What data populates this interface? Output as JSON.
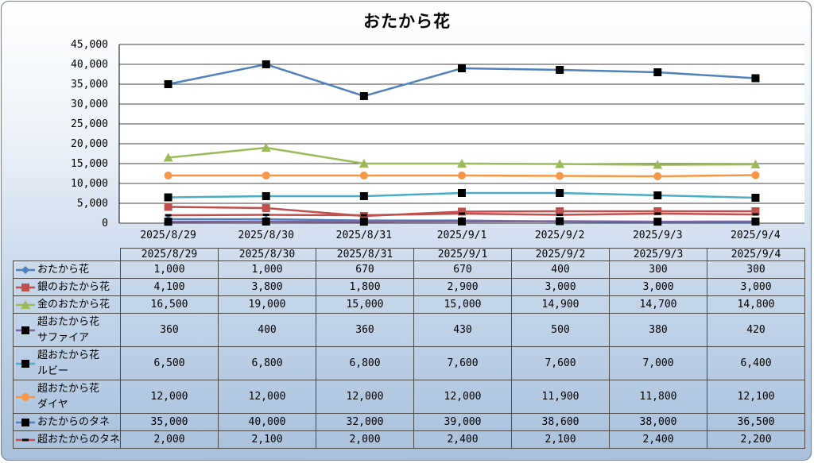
{
  "chart_data": {
    "type": "line",
    "title": "おたから花",
    "categories": [
      "2025/8/29",
      "2025/8/30",
      "2025/8/31",
      "2025/9/1",
      "2025/9/2",
      "2025/9/3",
      "2025/9/4"
    ],
    "ylim": [
      0,
      45000
    ],
    "yticks": [
      "0",
      "5,000",
      "10,000",
      "15,000",
      "20,000",
      "25,000",
      "30,000",
      "35,000",
      "40,000",
      "45,000"
    ],
    "grid": true,
    "legend": "data-table",
    "series": [
      {
        "name": "おたから花",
        "name2": "",
        "values": [
          1000,
          1000,
          670,
          670,
          400,
          300,
          300
        ],
        "display": [
          "1,000",
          "1,000",
          "670",
          "670",
          "400",
          "300",
          "300"
        ],
        "color": "#4f81bd",
        "marker": "diamond"
      },
      {
        "name": "銀のおたから花",
        "name2": "",
        "values": [
          4100,
          3800,
          1800,
          2900,
          3000,
          3000,
          3000
        ],
        "display": [
          "4,100",
          "3,800",
          "1,800",
          "2,900",
          "3,000",
          "3,000",
          "3,000"
        ],
        "color": "#c0504d",
        "marker": "square"
      },
      {
        "name": "金のおたから花",
        "name2": "",
        "values": [
          16500,
          19000,
          15000,
          15000,
          14900,
          14700,
          14800
        ],
        "display": [
          "16,500",
          "19,000",
          "15,000",
          "15,000",
          "14,900",
          "14,700",
          "14,800"
        ],
        "color": "#9bbb59",
        "marker": "triangle"
      },
      {
        "name": "超おたから花",
        "name2": "サファイア",
        "values": [
          360,
          400,
          360,
          430,
          500,
          380,
          420
        ],
        "display": [
          "360",
          "400",
          "360",
          "430",
          "500",
          "380",
          "420"
        ],
        "color": "#8064a2",
        "marker": "square-black"
      },
      {
        "name": "超おたから花",
        "name2": "ルビー",
        "values": [
          6500,
          6800,
          6800,
          7600,
          7600,
          7000,
          6400
        ],
        "display": [
          "6,500",
          "6,800",
          "6,800",
          "7,600",
          "7,600",
          "7,000",
          "6,400"
        ],
        "color": "#4bacc6",
        "marker": "square-black"
      },
      {
        "name": "超おたから花",
        "name2": "ダイヤ",
        "values": [
          12000,
          12000,
          12000,
          12000,
          11900,
          11800,
          12100
        ],
        "display": [
          "12,000",
          "12,000",
          "12,000",
          "12,000",
          "11,900",
          "11,800",
          "12,100"
        ],
        "color": "#f79646",
        "marker": "circle"
      },
      {
        "name": "おたからのタネ",
        "name2": "",
        "values": [
          35000,
          40000,
          32000,
          39000,
          38600,
          38000,
          36500
        ],
        "display": [
          "35,000",
          "40,000",
          "32,000",
          "39,000",
          "38,600",
          "38,000",
          "36,500"
        ],
        "color": "#4f81bd",
        "marker": "square-black"
      },
      {
        "name": "超おたからのタネ",
        "name2": "",
        "values": [
          2000,
          2100,
          2000,
          2400,
          2100,
          2400,
          2200
        ],
        "display": [
          "2,000",
          "2,100",
          "2,000",
          "2,400",
          "2,100",
          "2,400",
          "2,200"
        ],
        "color": "#c0504d",
        "marker": "dash"
      }
    ]
  }
}
